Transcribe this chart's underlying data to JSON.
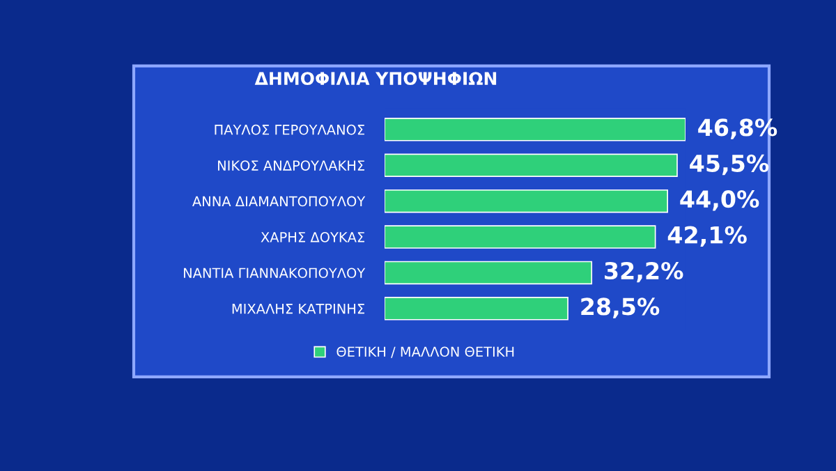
{
  "chart_data": {
    "type": "bar",
    "orientation": "horizontal",
    "title": "ΔΗΜΟΦΙΛΙΑ ΥΠΟΨΗΦΙΩΝ",
    "categories": [
      "ΠΑΥΛΟΣ ΓΕΡΟΥΛΑΝΟΣ",
      "ΝΙΚΟΣ ΑΝΔΡΟΥΛΑΚΗΣ",
      "ΑΝΝΑ ΔΙΑΜΑΝΤΟΠΟΥΛΟΥ",
      "ΧΑΡΗΣ ΔΟΥΚΑΣ",
      "ΝΑΝΤΙΑ ΓΙΑΝΝΑΚΟΠΟΥΛΟΥ",
      "ΜΙΧΑΛΗΣ ΚΑΤΡΙΝΗΣ"
    ],
    "series": [
      {
        "name": "ΘΕΤΙΚΗ / ΜΑΛΛΟΝ ΘΕΤΙΚΗ",
        "color": "#2fd07a",
        "values": [
          46.8,
          45.5,
          44.0,
          42.1,
          32.2,
          28.5
        ],
        "value_labels": [
          "46,8%",
          "45,5%",
          "44,0%",
          "42,1%",
          "32,2%",
          "28,5%"
        ]
      }
    ],
    "legend": "bottom",
    "grid": false
  }
}
